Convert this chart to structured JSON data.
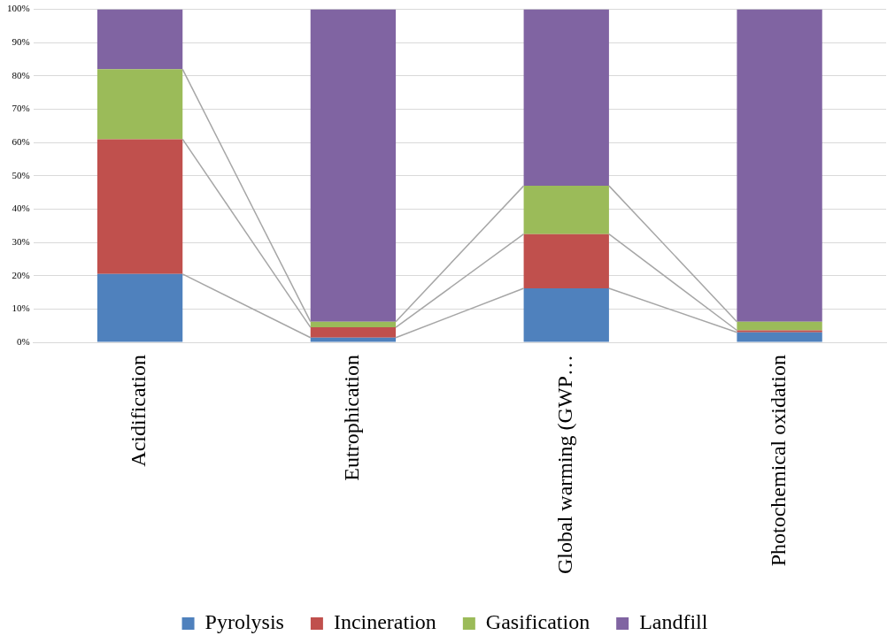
{
  "chart_data": {
    "type": "bar",
    "stacked": true,
    "categories": [
      "Acidification",
      "Eutrophication",
      "Global warming (GWP…",
      "Photochemical oxidation"
    ],
    "series": [
      {
        "name": "Pyrolysis",
        "color": "#4f81bd",
        "values": [
          20.5,
          1.4,
          16.2,
          3
        ]
      },
      {
        "name": "Incineration",
        "color": "#c0504d",
        "values": [
          40.5,
          3.1,
          16.3,
          0.6
        ]
      },
      {
        "name": "Gasification",
        "color": "#9bbb59",
        "values": [
          21,
          1.7,
          14.5,
          2.6
        ]
      },
      {
        "name": "Landfill",
        "color": "#8064a2",
        "values": [
          18,
          93.8,
          53,
          93.8
        ]
      }
    ],
    "ylim": [
      0,
      100
    ],
    "yticks": [
      {
        "value": 0,
        "label": "0%"
      },
      {
        "value": 10,
        "label": "10%"
      },
      {
        "value": 20,
        "label": "20%"
      },
      {
        "value": 30,
        "label": "30%"
      },
      {
        "value": 40,
        "label": "40%"
      },
      {
        "value": 50,
        "label": "50%"
      },
      {
        "value": 60,
        "label": "60%"
      },
      {
        "value": 70,
        "label": "70%"
      },
      {
        "value": 80,
        "label": "80%"
      },
      {
        "value": 90,
        "label": "90%"
      },
      {
        "value": 100,
        "label": "100%"
      }
    ],
    "grid": "y",
    "legend": "bottom"
  }
}
